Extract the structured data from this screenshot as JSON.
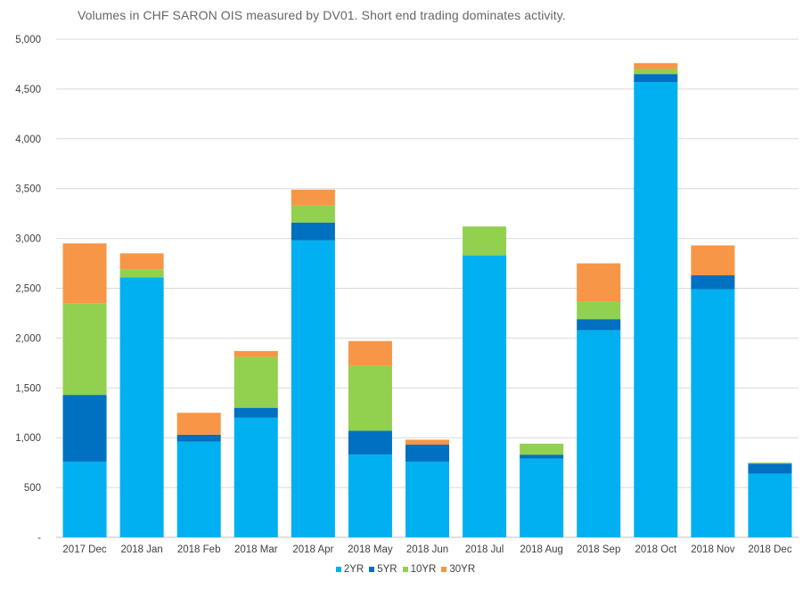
{
  "chart_data": {
    "type": "bar",
    "stacked": true,
    "title": "Volumes in CHF SARON OIS measured by DV01. Short end trading dominates activity.",
    "xlabel": "",
    "ylabel": "",
    "categories": [
      "2017 Dec",
      "2018 Jan",
      "2018 Feb",
      "2018 Mar",
      "2018 Apr",
      "2018 May",
      "2018 Jun",
      "2018 Jul",
      "2018 Aug",
      "2018 Sep",
      "2018 Oct",
      "2018 Nov",
      "2018 Dec"
    ],
    "ylim": [
      0,
      5000
    ],
    "yticks": [
      0,
      500,
      1000,
      1500,
      2000,
      2500,
      3000,
      3500,
      4000,
      4500,
      5000
    ],
    "ytick_labels": [
      "-",
      "500",
      "1,000",
      "1,500",
      "2,000",
      "2,500",
      "3,000",
      "3,500",
      "4,000",
      "4,500",
      "5,000"
    ],
    "grid": "horizontal",
    "legend_position": "bottom",
    "series": [
      {
        "name": "2YR",
        "color": "#00B0F0",
        "values": [
          760,
          2610,
          960,
          1200,
          2980,
          830,
          760,
          2830,
          790,
          2080,
          4570,
          2490,
          640
        ]
      },
      {
        "name": "5YR",
        "color": "#0070C0",
        "values": [
          670,
          0,
          70,
          100,
          180,
          240,
          170,
          0,
          40,
          110,
          80,
          140,
          100
        ]
      },
      {
        "name": "10YR",
        "color": "#92D050",
        "values": [
          920,
          80,
          0,
          510,
          170,
          650,
          0,
          290,
          110,
          180,
          50,
          0,
          10
        ]
      },
      {
        "name": "30YR",
        "color": "#F79646",
        "values": [
          600,
          160,
          220,
          60,
          160,
          250,
          50,
          0,
          0,
          380,
          60,
          300,
          0
        ]
      }
    ]
  }
}
